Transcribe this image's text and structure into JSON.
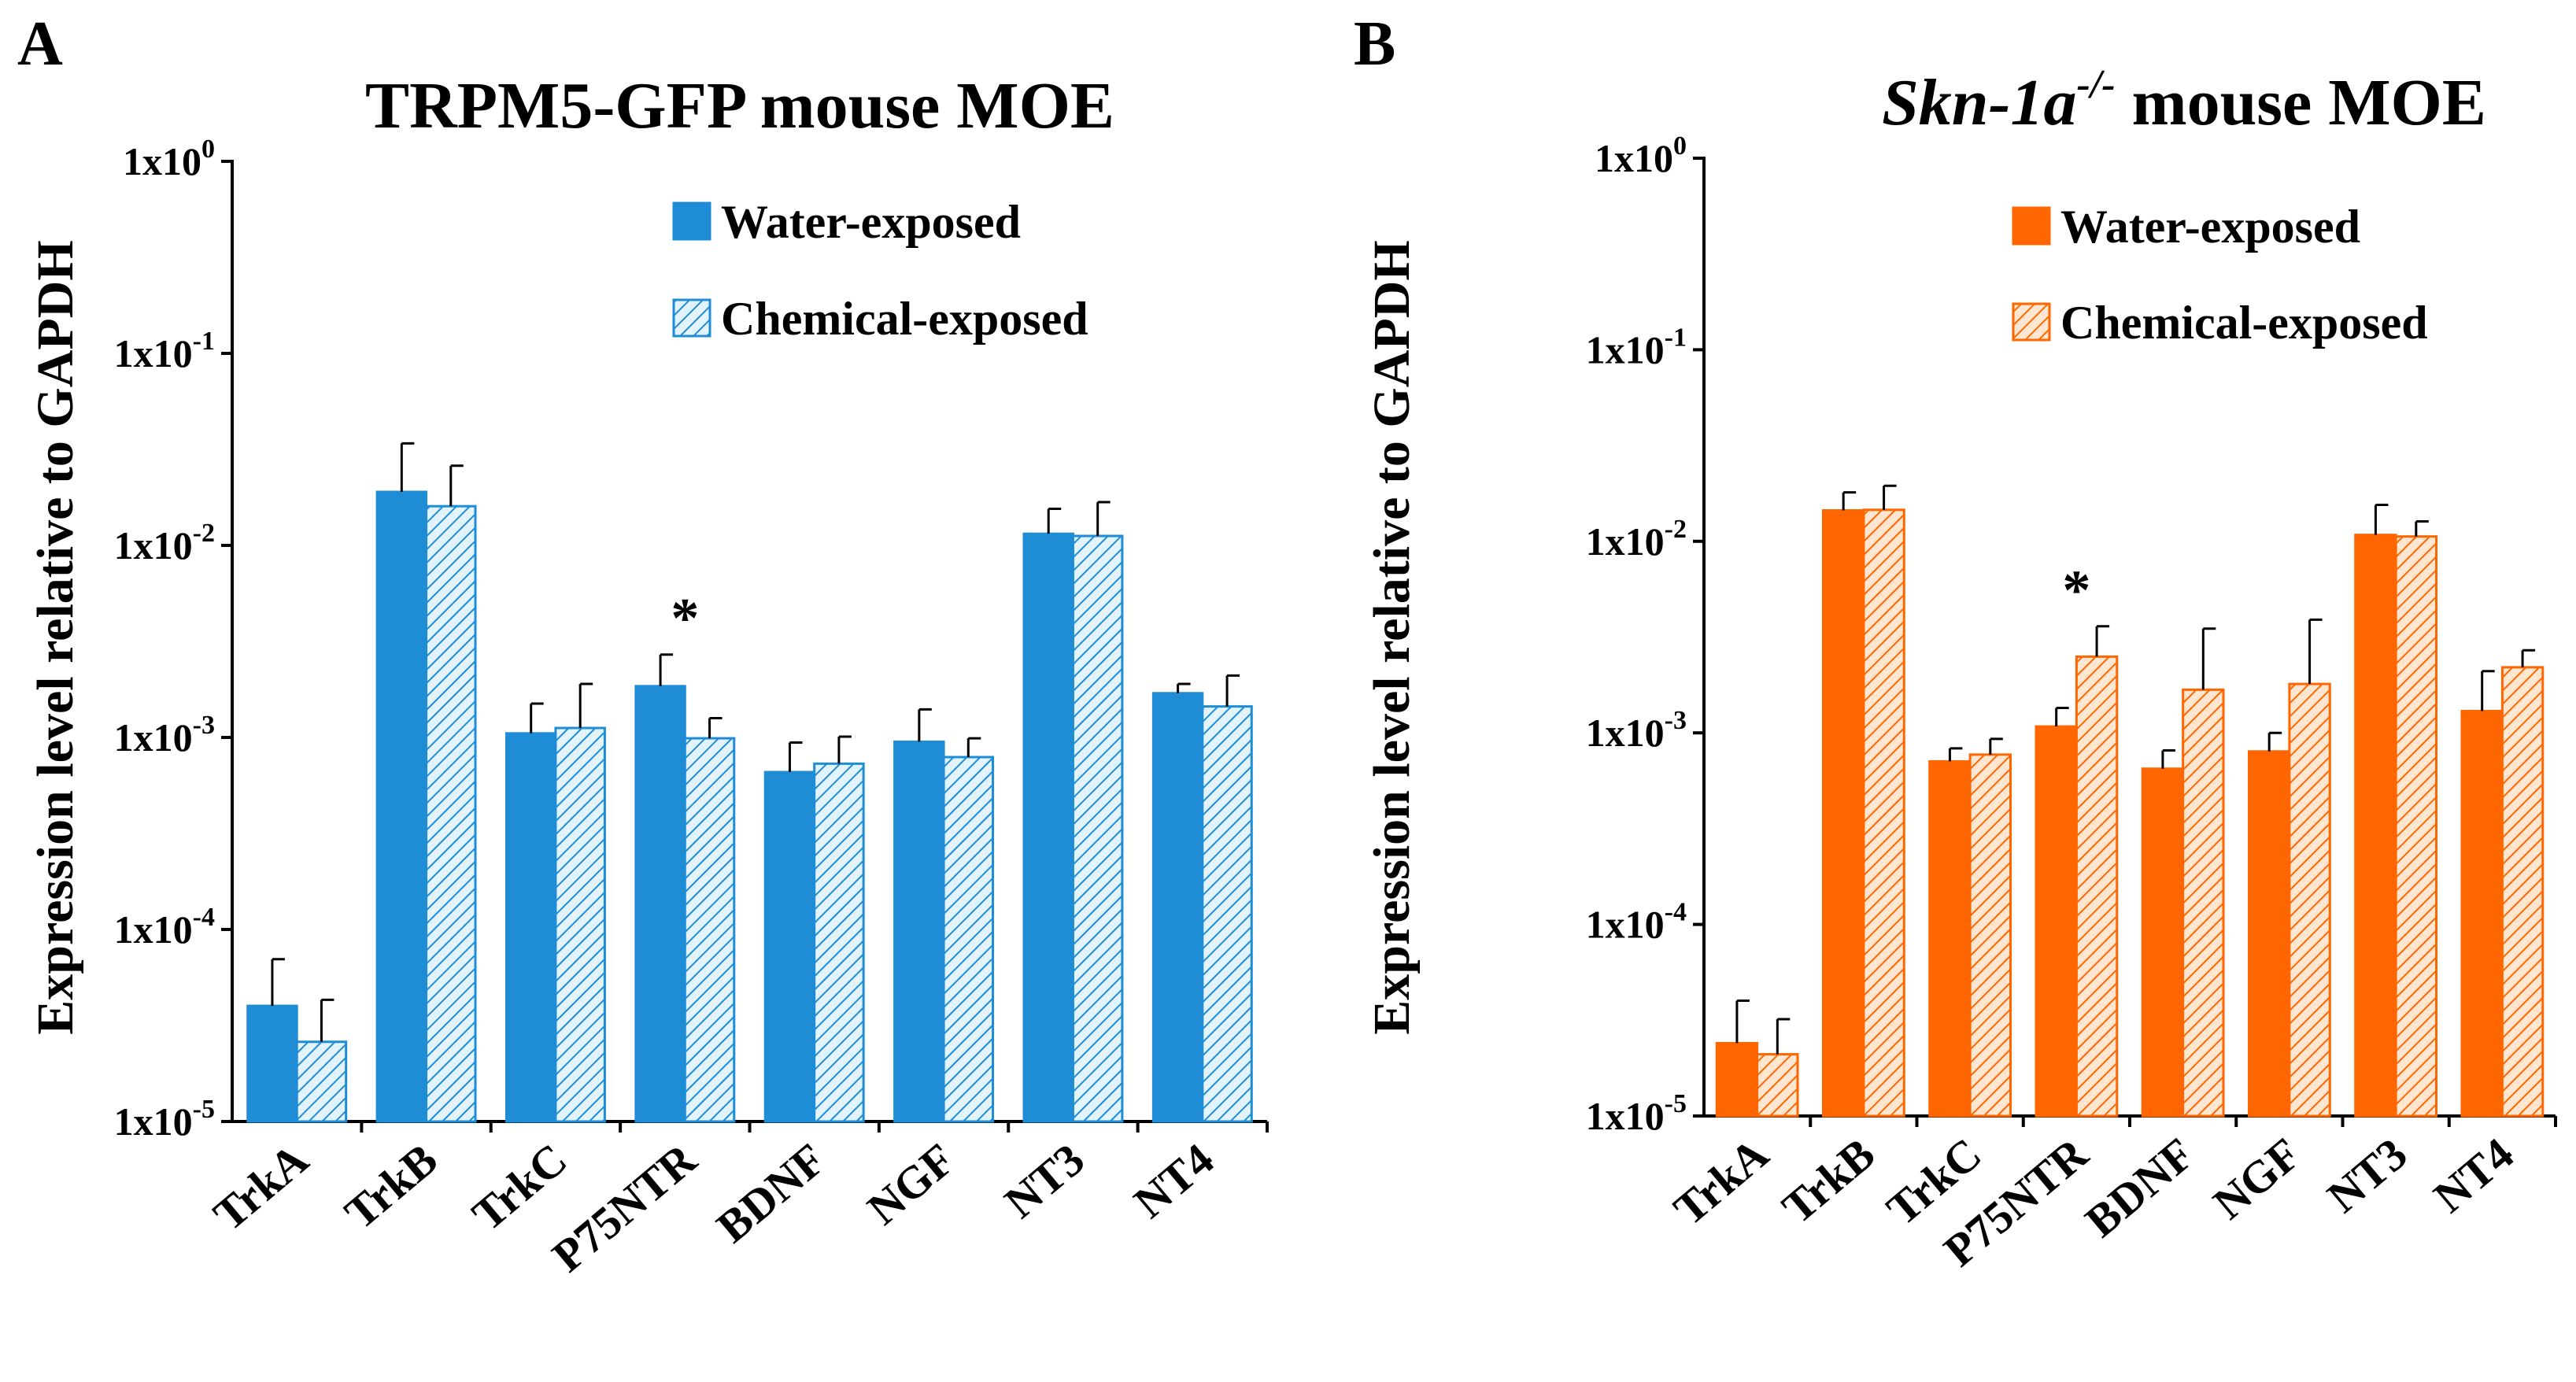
{
  "colors": {
    "blue": "#1F8DD6",
    "blue_light": "#E3F3FC",
    "orange": "#FF6600",
    "orange_light": "#FFE6D1",
    "axis": "#000000"
  },
  "chart_data": [
    {
      "panel": "A",
      "type": "bar",
      "title": "TRPM5-GFP mouse MOE",
      "title_parts": [],
      "xlabel": "",
      "ylabel": "Expression level relative to GAPDH",
      "yscale": "log",
      "ylim": [
        1e-05,
        1
      ],
      "ytick_labels": [
        {
          "base": "1x10",
          "exp": "-5"
        },
        {
          "base": "1x10",
          "exp": "-4"
        },
        {
          "base": "1x10",
          "exp": "-3"
        },
        {
          "base": "1x10",
          "exp": "-2"
        },
        {
          "base": "1x10",
          "exp": "-1"
        },
        {
          "base": "1x10",
          "exp": "0"
        }
      ],
      "categories": [
        "TrkA",
        "TrkB",
        "TrkC",
        "P75NTR",
        "BDNF",
        "NGF",
        "NT3",
        "NT4"
      ],
      "series": [
        {
          "name": "Water-exposed",
          "pattern": "solid",
          "values": [
            4e-05,
            0.019,
            0.00105,
            0.00185,
            0.00066,
            0.00095,
            0.0115,
            0.0017
          ],
          "errors_upper": [
            7e-05,
            0.034,
            0.0015,
            0.0027,
            0.00094,
            0.0014,
            0.0155,
            0.0019
          ]
        },
        {
          "name": "Chemical-exposed",
          "pattern": "hatched",
          "values": [
            2.6e-05,
            0.016,
            0.00112,
            0.00099,
            0.00073,
            0.00079,
            0.0112,
            0.00145
          ],
          "errors_upper": [
            4.3e-05,
            0.026,
            0.0019,
            0.00126,
            0.00101,
            0.00099,
            0.0168,
            0.0021
          ]
        }
      ],
      "annotations": [
        {
          "category": "P75NTR",
          "text": "*"
        }
      ],
      "legend_position": "top-right"
    },
    {
      "panel": "B",
      "type": "bar",
      "title": "",
      "title_parts": [
        {
          "text": "Skn-1a",
          "style": "italic"
        },
        {
          "text": "-/-",
          "style": "italic-superscript"
        },
        {
          "text": " mouse MOE",
          "style": "normal"
        }
      ],
      "xlabel": "",
      "ylabel": "Expression level relative to GAPDH",
      "yscale": "log",
      "ylim": [
        1e-05,
        1
      ],
      "ytick_labels": [
        {
          "base": "1x10",
          "exp": "-5"
        },
        {
          "base": "1x10",
          "exp": "-4"
        },
        {
          "base": "1x10",
          "exp": "-3"
        },
        {
          "base": "1x10",
          "exp": "-2"
        },
        {
          "base": "1x10",
          "exp": "-1"
        },
        {
          "base": "1x10",
          "exp": "0"
        }
      ],
      "categories": [
        "TrkA",
        "TrkB",
        "TrkC",
        "P75NTR",
        "BDNF",
        "NGF",
        "NT3",
        "NT4"
      ],
      "series": [
        {
          "name": "Water-exposed",
          "pattern": "solid",
          "values": [
            2.4e-05,
            0.0145,
            0.00071,
            0.00108,
            0.00065,
            0.0008,
            0.0108,
            0.0013
          ],
          "errors_upper": [
            4e-05,
            0.018,
            0.00083,
            0.00135,
            0.00081,
            0.001,
            0.0155,
            0.0021
          ]
        },
        {
          "name": "Chemical-exposed",
          "pattern": "hatched",
          "values": [
            2.1e-05,
            0.0146,
            0.00077,
            0.0025,
            0.00168,
            0.0018,
            0.0106,
            0.0022
          ],
          "errors_upper": [
            3.2e-05,
            0.0195,
            0.00093,
            0.0036,
            0.0035,
            0.0039,
            0.0127,
            0.0027
          ]
        }
      ],
      "annotations": [
        {
          "category": "P75NTR",
          "text": "*"
        }
      ],
      "legend_position": "top-right"
    }
  ]
}
